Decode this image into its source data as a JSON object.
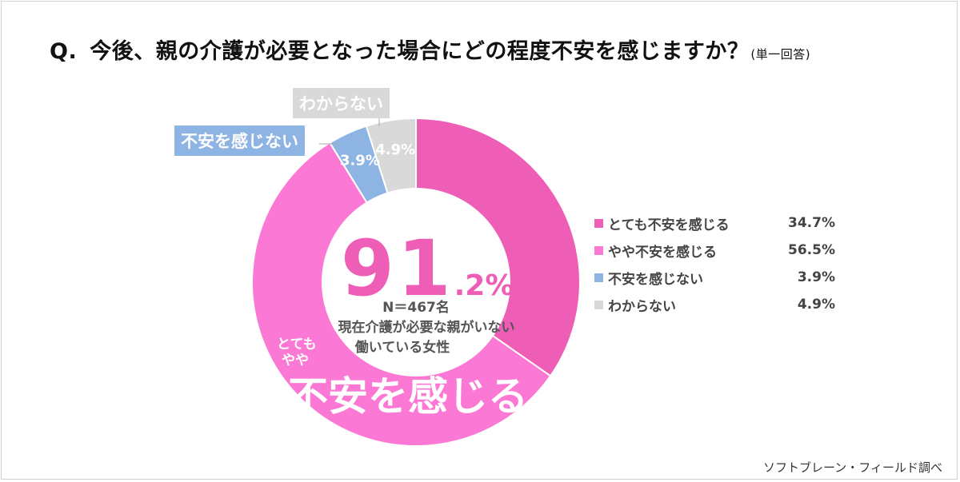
{
  "title": {
    "q": "Q.",
    "text": "今後、親の介護が必要となった場合にどの程度不安を感じますか？",
    "note": "(単一回答)"
  },
  "chart_data": {
    "type": "pie",
    "categories": [
      "とても不安を感じる",
      "やや不安を感じる",
      "不安を感じない",
      "わからない"
    ],
    "values": [
      34.7,
      56.5,
      3.9,
      4.9
    ],
    "value_labels": [
      "34.7%",
      "56.5%",
      "3.9%",
      "4.9%"
    ],
    "colors": [
      "#ee5db6",
      "#fb78d4",
      "#8eb4e3",
      "#d9d9d9"
    ],
    "legend_position": "right",
    "center": {
      "total_int": "91",
      "total_dec": ".2%",
      "n": "N＝467名",
      "subtitle_1": "現在介護が必要な親がいない",
      "subtitle_2": "働いている女性"
    },
    "callouts": {
      "unease_none": "不安を感じない",
      "unknown": "わからない",
      "label_1": "とても",
      "label_2": "やや",
      "main": "不安を感じる"
    }
  },
  "source": "ソフトブレーン・フィールド調べ"
}
